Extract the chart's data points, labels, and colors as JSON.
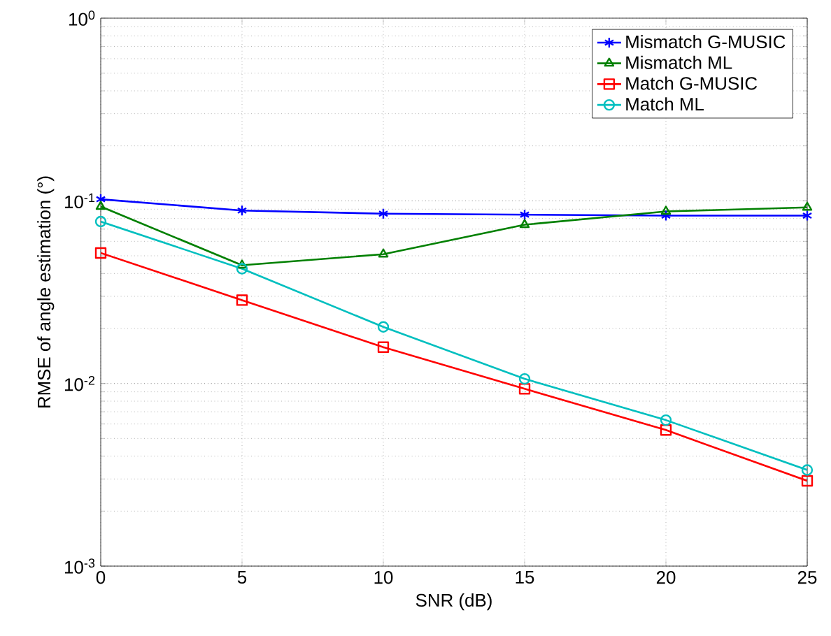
{
  "chart_data": {
    "type": "line",
    "xlabel": "SNR (dB)",
    "ylabel": "RMSE of angle estimation (°)",
    "log": "y",
    "grid": true,
    "legend": "top right",
    "x": [
      0,
      5,
      10,
      15,
      20,
      25
    ],
    "xlim": [
      0,
      25
    ],
    "xticks": [
      0,
      5,
      10,
      15,
      20,
      25
    ],
    "ylim": [
      0.001,
      1
    ],
    "yticks": [
      {
        "value": 0.001,
        "label": "10$^{-3}$"
      },
      {
        "value": 0.01,
        "label": "10$^{-2}$"
      },
      {
        "value": 0.1,
        "label": "10$^{-1}$"
      },
      {
        "value": 1,
        "label": "10$^{0}$"
      }
    ],
    "series": [
      {
        "name": "Mismatch G-MUSIC",
        "color": "#0000ff",
        "marker": "cross",
        "values": [
          0.102,
          0.0885,
          0.085,
          0.084,
          0.083,
          0.083
        ]
      },
      {
        "name": "Mismatch ML",
        "color": "#008000",
        "marker": "triangle",
        "values": [
          0.093,
          0.0444,
          0.051,
          0.074,
          0.0875,
          0.092
        ]
      },
      {
        "name": "Match G-MUSIC",
        "color": "#ff0000",
        "marker": "square",
        "values": [
          0.0518,
          0.0286,
          0.0158,
          0.00935,
          0.00556,
          0.00293
        ]
      },
      {
        "name": "Match ML",
        "color": "#00bfbf",
        "marker": "circle",
        "values": [
          0.077,
          0.0425,
          0.0204,
          0.0106,
          0.0063,
          0.00336
        ]
      }
    ]
  }
}
